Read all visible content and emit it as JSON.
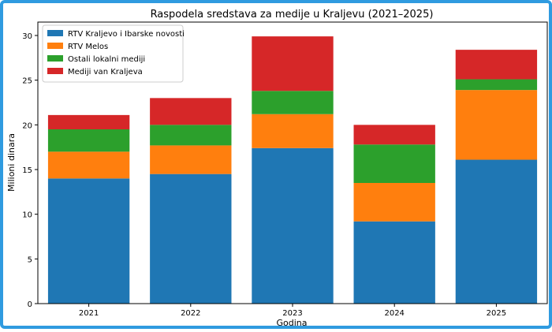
{
  "chart_data": {
    "type": "bar",
    "stacked": true,
    "title": "Raspodela sredstava za medije u Kraljevu (2021–2025)",
    "xlabel": "Godina",
    "ylabel": "Milioni dinara",
    "categories": [
      "2021",
      "2022",
      "2023",
      "2024",
      "2025"
    ],
    "ylim": [
      0,
      31.5
    ],
    "yticks": [
      0,
      5,
      10,
      15,
      20,
      25,
      30
    ],
    "grid": false,
    "legend_position": "top-left",
    "series": [
      {
        "name": "RTV Kraljevo i Ibarske novosti",
        "color": "#1f77b4",
        "values": [
          14.0,
          14.5,
          17.4,
          9.2,
          16.1
        ]
      },
      {
        "name": "RTV Melos",
        "color": "#ff7f0e",
        "values": [
          3.0,
          3.2,
          3.8,
          4.3,
          7.8
        ]
      },
      {
        "name": "Ostali lokalni mediji",
        "color": "#2ca02c",
        "values": [
          2.5,
          2.3,
          2.6,
          4.3,
          1.2
        ]
      },
      {
        "name": "Mediji van Kraljeva",
        "color": "#d62728",
        "values": [
          1.6,
          3.0,
          6.1,
          2.2,
          3.3
        ]
      }
    ]
  }
}
